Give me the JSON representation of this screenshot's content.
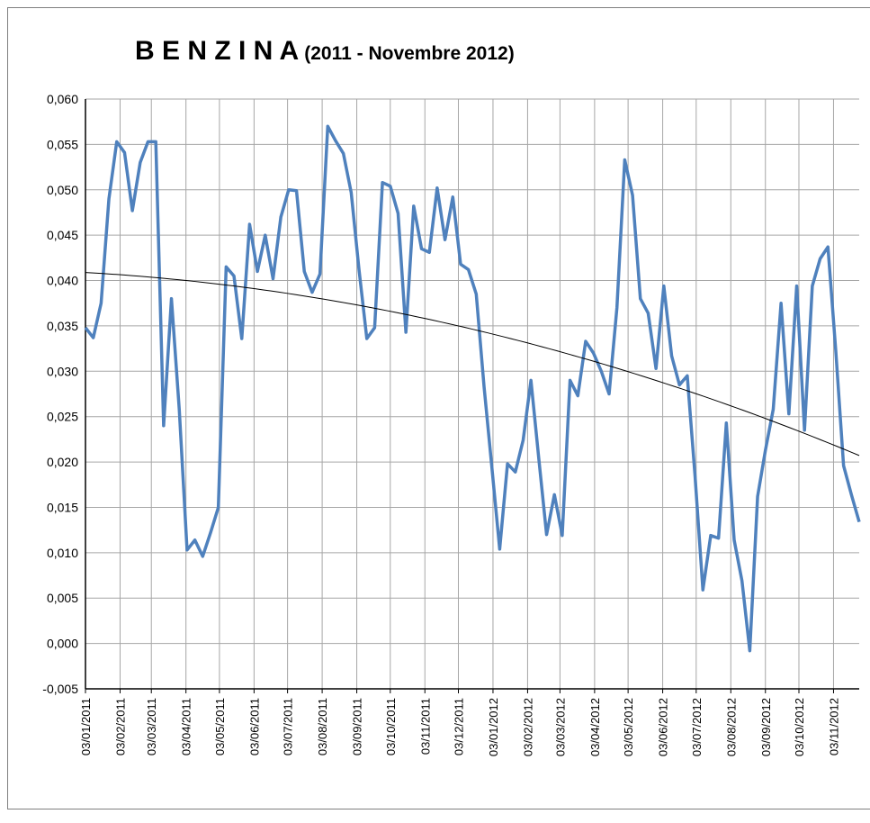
{
  "chart_data": {
    "type": "line",
    "title": "B E N Z I N A",
    "subtitle": "(2011 - Novembre 2012)",
    "x": [
      "03/01/2011",
      "10/01/2011",
      "17/01/2011",
      "24/01/2011",
      "31/01/2011",
      "07/02/2011",
      "14/02/2011",
      "21/02/2011",
      "28/02/2011",
      "07/03/2011",
      "14/03/2011",
      "21/03/2011",
      "28/03/2011",
      "04/04/2011",
      "11/04/2011",
      "18/04/2011",
      "25/04/2011",
      "02/05/2011",
      "09/05/2011",
      "16/05/2011",
      "23/05/2011",
      "30/05/2011",
      "06/06/2011",
      "13/06/2011",
      "20/06/2011",
      "27/06/2011",
      "04/07/2011",
      "11/07/2011",
      "18/07/2011",
      "25/07/2011",
      "01/08/2011",
      "08/08/2011",
      "15/08/2011",
      "22/08/2011",
      "29/08/2011",
      "05/09/2011",
      "12/09/2011",
      "19/09/2011",
      "26/09/2011",
      "03/10/2011",
      "10/10/2011",
      "17/10/2011",
      "24/10/2011",
      "31/10/2011",
      "07/11/2011",
      "14/11/2011",
      "21/11/2011",
      "28/11/2011",
      "05/12/2011",
      "12/12/2011",
      "19/12/2011",
      "26/12/2011",
      "02/01/2012",
      "09/01/2012",
      "16/01/2012",
      "23/01/2012",
      "30/01/2012",
      "06/02/2012",
      "13/02/2012",
      "20/02/2012",
      "27/02/2012",
      "05/03/2012",
      "12/03/2012",
      "19/03/2012",
      "26/03/2012",
      "02/04/2012",
      "09/04/2012",
      "16/04/2012",
      "23/04/2012",
      "30/04/2012",
      "07/05/2012",
      "14/05/2012",
      "21/05/2012",
      "28/05/2012",
      "04/06/2012",
      "11/06/2012",
      "18/06/2012",
      "25/06/2012",
      "02/07/2012",
      "09/07/2012",
      "16/07/2012",
      "23/07/2012",
      "30/07/2012",
      "06/08/2012",
      "13/08/2012",
      "20/08/2012",
      "27/08/2012",
      "03/09/2012",
      "10/09/2012",
      "17/09/2012",
      "24/09/2012",
      "01/10/2012",
      "08/10/2012",
      "15/10/2012",
      "22/10/2012",
      "29/10/2012",
      "05/11/2012",
      "12/11/2012",
      "19/11/2012",
      "26/11/2012"
    ],
    "series": [
      {
        "color": "#4f81bd",
        "values": [
          0.0348,
          0.0337,
          0.0375,
          0.049,
          0.0553,
          0.0541,
          0.0477,
          0.053,
          0.0553,
          0.0553,
          0.024,
          0.038,
          0.0258,
          0.0103,
          0.0114,
          0.0096,
          0.0122,
          0.015,
          0.0415,
          0.0405,
          0.0336,
          0.0462,
          0.041,
          0.045,
          0.0402,
          0.047,
          0.05,
          0.0499,
          0.041,
          0.0387,
          0.0407,
          0.057,
          0.0554,
          0.054,
          0.0497,
          0.0412,
          0.0336,
          0.0348,
          0.0508,
          0.0504,
          0.0474,
          0.0343,
          0.0482,
          0.0435,
          0.0431,
          0.0502,
          0.0445,
          0.0492,
          0.0418,
          0.0412,
          0.0385,
          0.0283,
          0.0194,
          0.0104,
          0.0198,
          0.0189,
          0.0224,
          0.029,
          0.0204,
          0.012,
          0.0164,
          0.0119,
          0.029,
          0.0273,
          0.0333,
          0.032,
          0.03,
          0.0275,
          0.037,
          0.0533,
          0.0494,
          0.038,
          0.0364,
          0.0303,
          0.0394,
          0.0317,
          0.0285,
          0.0295,
          0.0184,
          0.0059,
          0.0119,
          0.0116,
          0.0243,
          0.0114,
          0.0069,
          -0.0008,
          0.0162,
          0.0213,
          0.0258,
          0.0375,
          0.0253,
          0.0394,
          0.0235,
          0.0394,
          0.0424,
          0.0437,
          0.0323,
          0.0196,
          0.0164,
          0.0134
        ]
      }
    ],
    "trendline": {
      "type": "polynomial",
      "order": 2,
      "color": "#000000"
    },
    "xlim": [
      "03/01/2011",
      "26/11/2012"
    ],
    "xticks": [
      "03/01/2011",
      "03/02/2011",
      "03/03/2011",
      "03/04/2011",
      "03/05/2011",
      "03/06/2011",
      "03/07/2011",
      "03/08/2011",
      "03/09/2011",
      "03/10/2011",
      "03/11/2011",
      "03/12/2011",
      "03/01/2012",
      "03/02/2012",
      "03/03/2012",
      "03/04/2012",
      "03/05/2012",
      "03/06/2012",
      "03/07/2012",
      "03/08/2012",
      "03/09/2012",
      "03/10/2012",
      "03/11/2012"
    ],
    "ylim": [
      -0.005,
      0.06
    ],
    "yticks": [
      {
        "value": -0.005,
        "label": "-0,005"
      },
      {
        "value": 0,
        "label": "0,000"
      },
      {
        "value": 0.005,
        "label": "0,005"
      },
      {
        "value": 0.01,
        "label": "0,010"
      },
      {
        "value": 0.015,
        "label": "0,015"
      },
      {
        "value": 0.02,
        "label": "0,020"
      },
      {
        "value": 0.025,
        "label": "0,025"
      },
      {
        "value": 0.03,
        "label": "0,030"
      },
      {
        "value": 0.035,
        "label": "0,035"
      },
      {
        "value": 0.04,
        "label": "0,040"
      },
      {
        "value": 0.045,
        "label": "0,045"
      },
      {
        "value": 0.05,
        "label": "0,050"
      },
      {
        "value": 0.055,
        "label": "0,055"
      },
      {
        "value": 0.06,
        "label": "0,060"
      }
    ],
    "grid": true
  }
}
